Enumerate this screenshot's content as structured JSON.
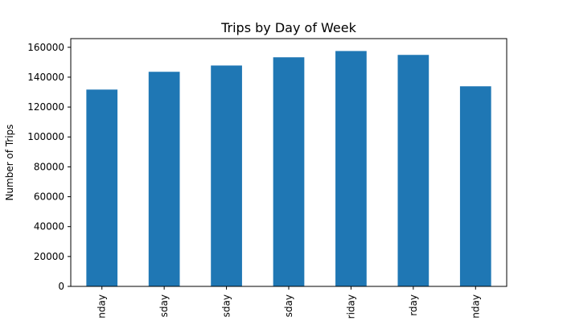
{
  "chart_data": {
    "type": "bar",
    "title": "Trips by Day of Week",
    "xlabel": "",
    "ylabel": "Number of Trips",
    "categories": [
      "Monday",
      "Tuesday",
      "Wednesday",
      "Thursday",
      "Friday",
      "Saturday",
      "Sunday"
    ],
    "visible_tick_labels": [
      "nday",
      "sday",
      "sday",
      "sday",
      "riday",
      "rday",
      "nday"
    ],
    "values": [
      131700,
      143600,
      147800,
      153300,
      157500,
      154900,
      133900
    ],
    "ylim": [
      0,
      165800
    ],
    "yticks": [
      0,
      20000,
      40000,
      60000,
      80000,
      100000,
      120000,
      140000,
      160000
    ],
    "bar_color": "#1f77b4",
    "grid": false,
    "legend": "none"
  }
}
